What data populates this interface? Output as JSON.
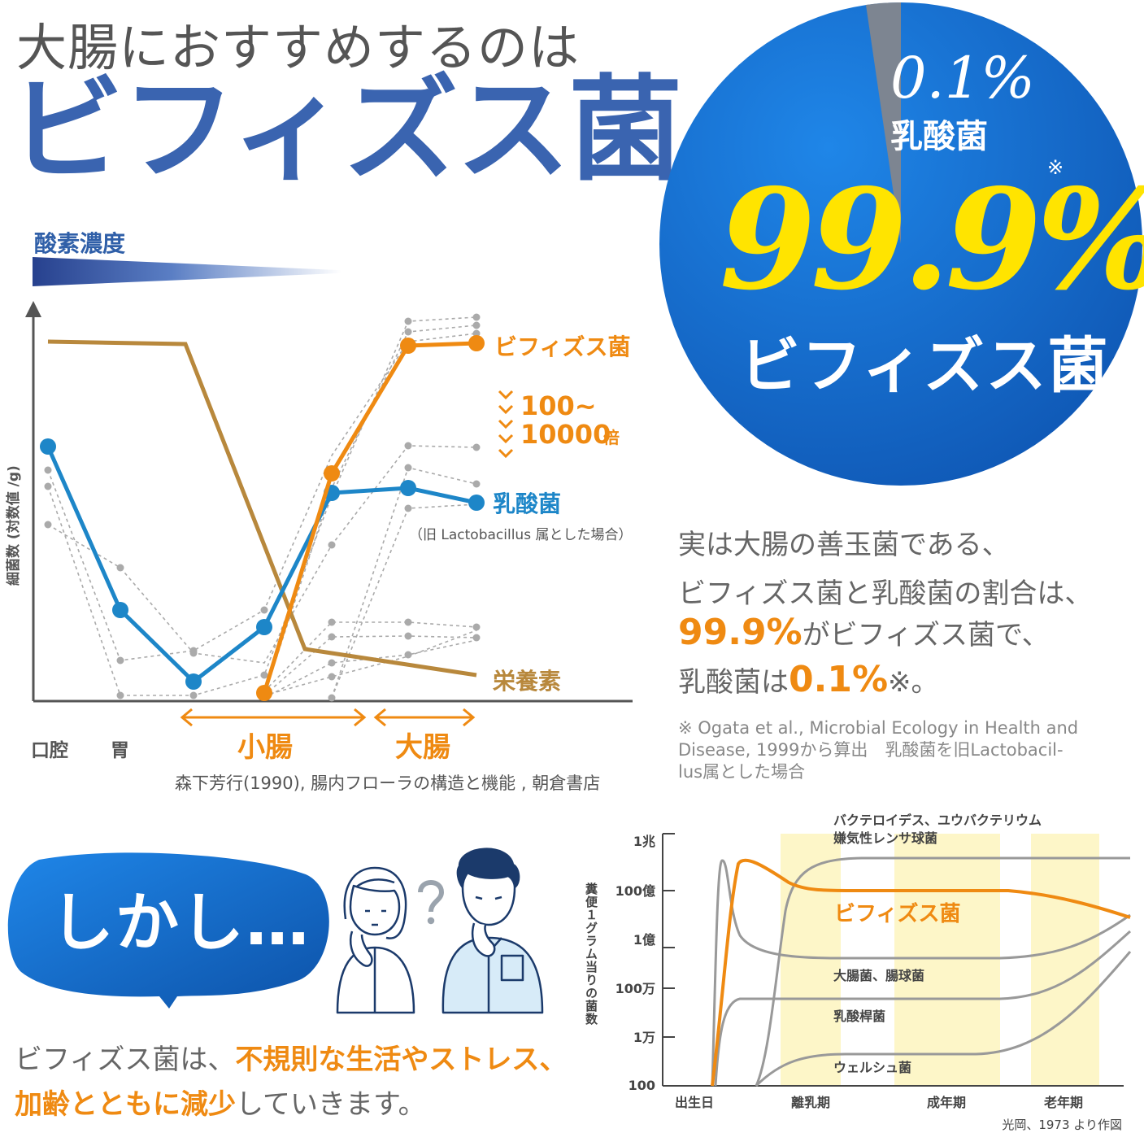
{
  "header": {
    "line1": "大腸におすすめするのは",
    "line2": "ビフィズス菌"
  },
  "oxygen": {
    "label": "酸素濃度"
  },
  "pie": {
    "small_pct": "0.1%",
    "small_label": "乳酸菌",
    "mark": "※",
    "big_pct": "99.9%",
    "big_label": "ビフィズス菌",
    "values": [
      99.9,
      0.1
    ],
    "colors": [
      "#1f6fd1",
      "#7d8591"
    ]
  },
  "paragraph": {
    "line1": "実は大腸の善玉菌である、",
    "line2": "ビフィズス菌と乳酸菌の割合は、",
    "line3_pct": "99.9%",
    "line3_rest": "がビフィズス菌で、",
    "line4_pre": "乳酸菌は",
    "line4_pct": "0.1%",
    "line4_post": "※。"
  },
  "note": {
    "line1": "※ Ogata et al., Microbial Ecology in Health and",
    "line2": "Disease, 1999から算出　乳酸菌を旧Lactobacil-",
    "line3": "lus属とした場合"
  },
  "bubble": {
    "text": "しかし…"
  },
  "bottom": {
    "l1_pre": "ビフィズス菌は、",
    "l1_hl": "不規則な生活やストレス、",
    "l2_hl": "加齢とともに減少",
    "l2_post": "していきます。"
  },
  "chart_data": [
    {
      "type": "line",
      "ylabel": "細菌数 (対数値 /g)",
      "x_labels": [
        "口腔",
        "胃"
      ],
      "region_labels": [
        "小腸",
        "大腸"
      ],
      "series": [
        {
          "name": "ビフィズス菌",
          "color": "#ef8a12",
          "points": [
            [
              3.2,
              0
            ],
            [
              4.0,
              0.55
            ],
            [
              5.0,
              0.92
            ],
            [
              6.0,
              0.92
            ]
          ]
        },
        {
          "name": "乳酸菌",
          "color": "#1d86c8",
          "points": [
            [
              0.2,
              0.63
            ],
            [
              1.2,
              0.24
            ],
            [
              2.2,
              0.05
            ],
            [
              3.2,
              0.19
            ],
            [
              4.0,
              0.52
            ],
            [
              5.0,
              0.53
            ],
            [
              6.0,
              0.5
            ]
          ]
        },
        {
          "name": "栄養素",
          "color": "#b8883c",
          "points": [
            [
              0.2,
              0.9
            ],
            [
              2.0,
              0.9
            ],
            [
              3.5,
              0.13
            ],
            [
              6.0,
              0.07
            ]
          ]
        }
      ],
      "background_series_color": "#aaaaaa",
      "annotation_fold_top": "100~",
      "annotation_fold_bottom": "10000",
      "annotation_fold_unit": "倍",
      "lacto_note": "（旧 Lactobacillus 属とした場合）",
      "source": "森下芳行(1990), 腸内フローラの構造と機能 , 朝倉書店"
    },
    {
      "type": "line",
      "ylabel": "糞便１グラム当りの菌数",
      "y_ticks": [
        "1兆",
        "100億",
        "1億",
        "100万",
        "1万",
        "100"
      ],
      "x_ticks": [
        "出生日",
        "離乳期",
        "成年期",
        "老年期"
      ],
      "series_labels": [
        "バクテロイデス、ユウバクテリウム",
        "嫌気性レンサ球菌",
        "ビフィズス菌",
        "大腸菌、腸球菌",
        "乳酸桿菌",
        "ウェルシュ菌"
      ],
      "highlight_color": "#ef8a12",
      "other_color": "#999999",
      "band_color": "#fdf6c8",
      "source": "光岡、1973 より作図"
    }
  ]
}
